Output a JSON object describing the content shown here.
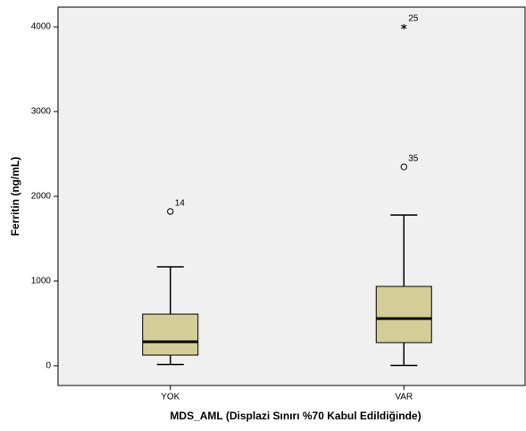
{
  "chart_data": {
    "type": "box",
    "x_label": "MDS_AML (Displazi Sınırı %70 Kabul Edildiğinde)",
    "y_label": "Ferritin (ng/mL)",
    "categories": [
      "YOK",
      "VAR"
    ],
    "color": "#d3ce97",
    "background": "#f0f0f0",
    "ylim": [
      -232,
      4232
    ],
    "yticks": [
      0,
      1000,
      2000,
      3000,
      4000
    ],
    "series": [
      {
        "min": 15,
        "q1": 126,
        "median": 284,
        "q3": 610,
        "max": 1168,
        "outliers": {
          "values": [
            1821
          ],
          "case_labels": [
            "14"
          ]
        },
        "extremes": {
          "values": [],
          "case_labels": []
        }
      },
      {
        "min": 5,
        "q1": 274,
        "median": 558,
        "q3": 937,
        "max": 1779,
        "outliers": {
          "values": [
            2347
          ],
          "case_labels": [
            "35"
          ]
        },
        "extremes": {
          "values": [
            4000
          ],
          "case_labels": [
            "25"
          ]
        }
      }
    ]
  }
}
